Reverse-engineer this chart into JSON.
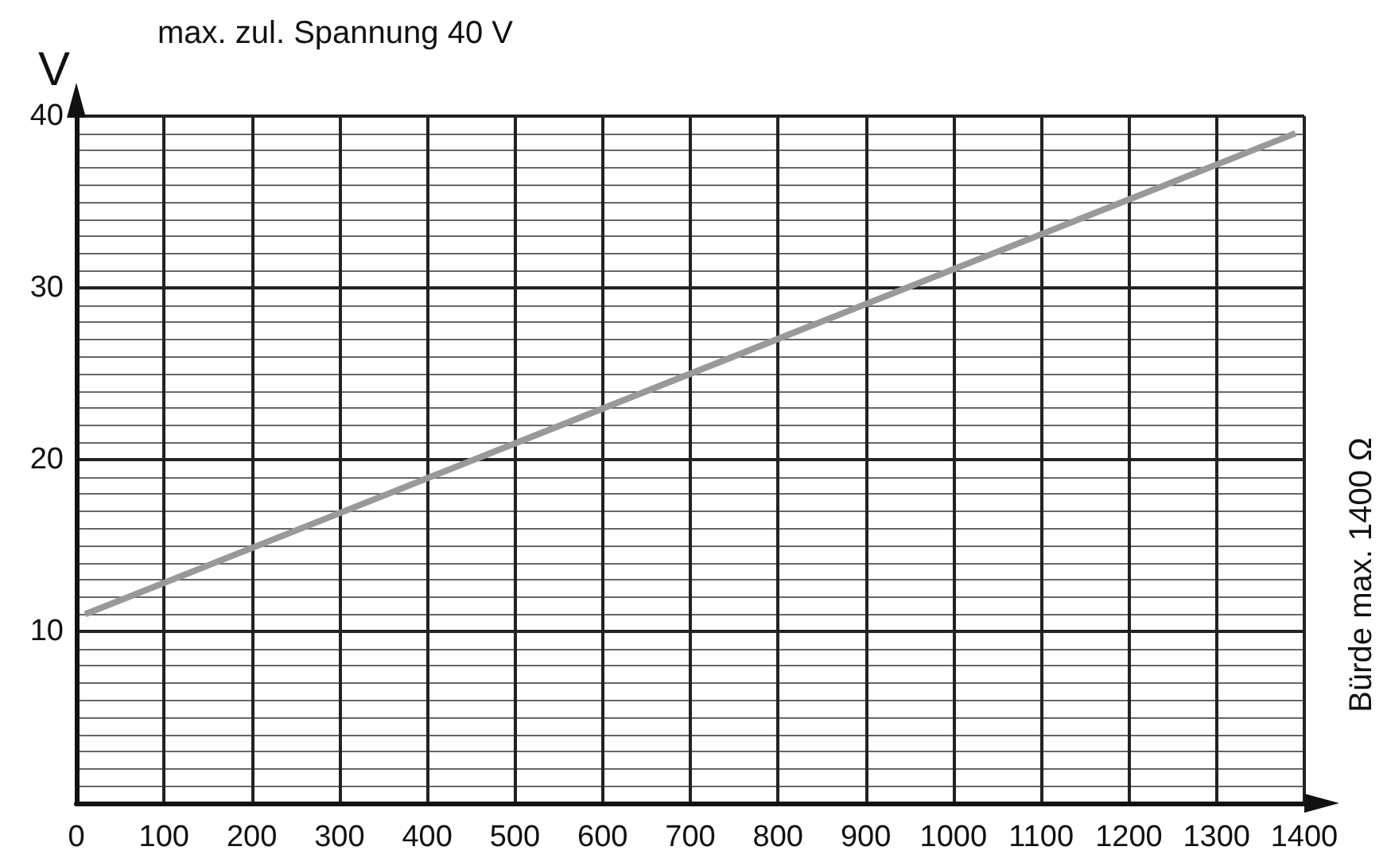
{
  "chart_data": {
    "type": "line",
    "title": "max. zul. Spannung 40 V",
    "ylabel": "V",
    "annotations": [
      "Bürde max. 1400 Ω"
    ],
    "x": [
      10,
      1390
    ],
    "series": [
      {
        "color": "#999999",
        "values": [
          11,
          39
        ]
      }
    ],
    "xlim": [
      0,
      1400
    ],
    "ylim": [
      0,
      40
    ],
    "xticks": [
      0,
      100,
      200,
      300,
      400,
      500,
      600,
      700,
      800,
      900,
      1000,
      1100,
      1200,
      1300,
      1400
    ],
    "yticks": [
      10,
      20,
      30,
      40
    ],
    "grid": true,
    "marker": "none",
    "line_style": "solid"
  }
}
